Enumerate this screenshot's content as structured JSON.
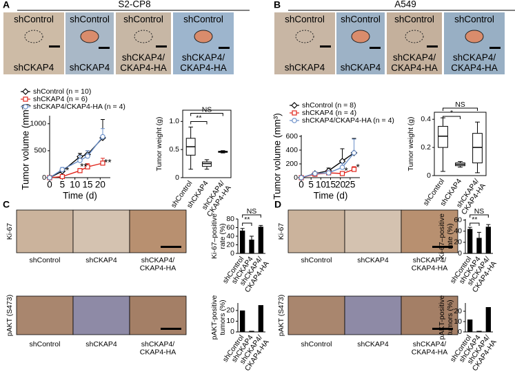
{
  "panels": [
    {
      "label": "A",
      "title": "S2-CP8",
      "photos": [
        {
          "top": "shControl",
          "bottom": "shCKAP4"
        },
        {
          "top": "shControl",
          "bottom": "shCKAP4"
        },
        {
          "top": "shControl",
          "bottom": "shCKAP4/ CKAP4-HA"
        },
        {
          "top": "shControl",
          "bottom": "shCKAP4/ CKAP4-HA"
        }
      ]
    },
    {
      "label": "B",
      "title": "A549",
      "photos": [
        {
          "top": "shControl",
          "bottom": "shCKAP4"
        },
        {
          "top": "shControl",
          "bottom": "shCKAP4"
        },
        {
          "top": "shControl",
          "bottom": "shCKAP4/ CKAP4-HA"
        },
        {
          "top": "shControl",
          "bottom": "shCKAP4/ CKAP4-HA"
        }
      ]
    },
    {
      "label": "C",
      "stains": [
        "Ki-67",
        "pAKT (S473)"
      ],
      "groups": [
        "shControl",
        "shCKAP4",
        "shCKAP4/ CKAP4-HA"
      ]
    },
    {
      "label": "D",
      "stains": [
        "Ki-67",
        "pAKT (S473)"
      ],
      "groups": [
        "shControl",
        "shCKAP4",
        "shCKAP4/ CKAP4-HA"
      ]
    }
  ],
  "chart_data": [
    {
      "type": "line",
      "xlabel": "Time (d)",
      "ylabel": "Tumor volume (mm³)",
      "x": [
        0,
        5,
        12,
        15,
        21
      ],
      "xlim": [
        0,
        24
      ],
      "xticks": [
        0,
        5,
        10,
        15,
        20
      ],
      "ylim": [
        0,
        1150
      ],
      "yticks": [
        0,
        500,
        1000
      ],
      "series": [
        {
          "name": "shControl (n = 10)",
          "color": "#000000",
          "marker": "diamond",
          "values": [
            0,
            120,
            390,
            430,
            740
          ],
          "errors": [
            0,
            40,
            60,
            70,
            340
          ]
        },
        {
          "name": "shCKAP4 (n = 6)",
          "color": "#e0241b",
          "marker": "square",
          "values": [
            0,
            20,
            130,
            200,
            270
          ],
          "errors": [
            0,
            20,
            40,
            60,
            90
          ]
        },
        {
          "name": "shCKAP4/CKAP4-HA (n = 4)",
          "color": "#6a8fc8",
          "marker": "circle",
          "values": [
            0,
            150,
            320,
            400,
            760
          ],
          "errors": [
            0,
            40,
            90,
            100,
            150
          ]
        }
      ],
      "annotations": [
        {
          "text": "*",
          "x": 7,
          "y": 120,
          "color": "#e0241b"
        },
        {
          "text": "**",
          "x": 13.5,
          "y": 190,
          "color": "#e0241b"
        },
        {
          "text": "**",
          "x": 23,
          "y": 270,
          "color": "#e0241b"
        }
      ]
    },
    {
      "type": "box",
      "ylabel": "Tumor weight (g)",
      "categories": [
        "shControl",
        "shCKAP4",
        "shCKAP4/ CKAP4-HA"
      ],
      "ylim": [
        0,
        1.2
      ],
      "yticks": [
        0,
        0.5,
        {
          "value": 1,
          "label": "1.0"
        }
      ],
      "boxes": [
        {
          "min": 0.15,
          "q1": 0.4,
          "median": 0.55,
          "q3": 0.7,
          "max": 0.9
        },
        {
          "min": 0.15,
          "q1": 0.2,
          "median": 0.25,
          "q3": 0.28,
          "max": 0.32
        },
        {
          "min": 0.44,
          "q1": 0.45,
          "median": 0.46,
          "q3": 0.47,
          "max": 0.48
        }
      ],
      "comparisons": [
        {
          "label": "**",
          "from": 0,
          "to": 1
        },
        {
          "label": "NS",
          "from": 0,
          "to": 2
        }
      ]
    },
    {
      "type": "line",
      "xlabel": "Time (d)",
      "ylabel": "Tumor volume (mm³)",
      "x": [
        0,
        7,
        14,
        21,
        27
      ],
      "xlim": [
        0,
        30
      ],
      "xticks": [
        0,
        5,
        10,
        15,
        20,
        25
      ],
      "ylim": [
        0,
        620
      ],
      "yticks": [
        0,
        200,
        400,
        600
      ],
      "series": [
        {
          "name": "shControl (n = 8)",
          "color": "#000000",
          "marker": "diamond",
          "values": [
            0,
            60,
            100,
            240,
            360
          ],
          "errors": [
            0,
            20,
            40,
            180,
            210
          ]
        },
        {
          "name": "shCKAP4 (n = 4)",
          "color": "#e0241b",
          "marker": "square",
          "values": [
            0,
            50,
            70,
            60,
            120
          ],
          "errors": [
            0,
            10,
            20,
            30,
            40
          ]
        },
        {
          "name": "shCKAP4/CKAP4-HA (n = 4)",
          "color": "#6a8fc8",
          "marker": "circle",
          "values": [
            0,
            60,
            70,
            150,
            360
          ],
          "errors": [
            0,
            15,
            30,
            60,
            200
          ]
        }
      ],
      "annotations": [
        {
          "text": "*",
          "x": 23,
          "y": 90,
          "color": "#e0241b"
        },
        {
          "text": "*",
          "x": 29,
          "y": 140,
          "color": "#e0241b"
        }
      ]
    },
    {
      "type": "box",
      "ylabel": "Tumor weight (g)",
      "categories": [
        "shControl",
        "shCKAP4",
        "shCKAP4/ CKAP4-HA"
      ],
      "ylim": [
        0,
        0.45
      ],
      "yticks": [
        0,
        0.2,
        0.4
      ],
      "boxes": [
        {
          "min": 0.03,
          "q1": 0.2,
          "median": 0.28,
          "q3": 0.35,
          "max": 0.41
        },
        {
          "min": 0.06,
          "q1": 0.07,
          "median": 0.08,
          "q3": 0.09,
          "max": 0.1
        },
        {
          "min": 0.02,
          "q1": 0.09,
          "median": 0.2,
          "q3": 0.3,
          "max": 0.38
        }
      ],
      "comparisons": [
        {
          "label": "*",
          "from": 0,
          "to": 1
        },
        {
          "label": "NS",
          "from": 0,
          "to": 2
        }
      ]
    },
    {
      "type": "bar",
      "ylabel": "Ki-67–positive rate (%)",
      "categories": [
        "shControl",
        "shCKAP4",
        "shCKAP4/ CKAP4-HA"
      ],
      "values": [
        53,
        32,
        62
      ],
      "errors": [
        5,
        8,
        3
      ],
      "color": "#000000",
      "ylim": [
        0,
        80
      ],
      "yticks": [
        0,
        20,
        40,
        60,
        80
      ],
      "comparisons": [
        {
          "label": "**",
          "from": 0,
          "to": 1
        },
        {
          "label": "NS",
          "from": 0,
          "to": 2
        }
      ]
    },
    {
      "type": "bar",
      "ylabel": "pAKT-positive tumors (%)",
      "categories": [
        "shControl",
        "shCKAP4",
        "shCKAP4/ CKAP4-HA"
      ],
      "values": [
        20,
        1,
        25
      ],
      "color": "#000000",
      "ylim": [
        0,
        27
      ],
      "yticks": [
        0,
        10,
        20
      ]
    },
    {
      "type": "bar",
      "ylabel": "Ki-67–positive rate (%)",
      "categories": [
        "shControl",
        "shCKAP4",
        "shCKAP4/ CKAP4-HA"
      ],
      "values": [
        44,
        28,
        48
      ],
      "errors": [
        3,
        10,
        4
      ],
      "color": "#000000",
      "ylim": [
        0,
        62
      ],
      "yticks": [
        0,
        20,
        40,
        60
      ],
      "comparisons": [
        {
          "label": "**",
          "from": 0,
          "to": 1
        },
        {
          "label": "NS",
          "from": 0,
          "to": 2
        }
      ]
    },
    {
      "type": "bar",
      "ylabel": "pAKT-positive tumors (%)",
      "categories": [
        "shControl",
        "shCKAP4",
        "shCKAP4/ CKAP4-HA"
      ],
      "values": [
        12,
        1,
        24
      ],
      "color": "#000000",
      "ylim": [
        0,
        28
      ],
      "yticks": [
        0,
        10,
        20
      ]
    }
  ]
}
